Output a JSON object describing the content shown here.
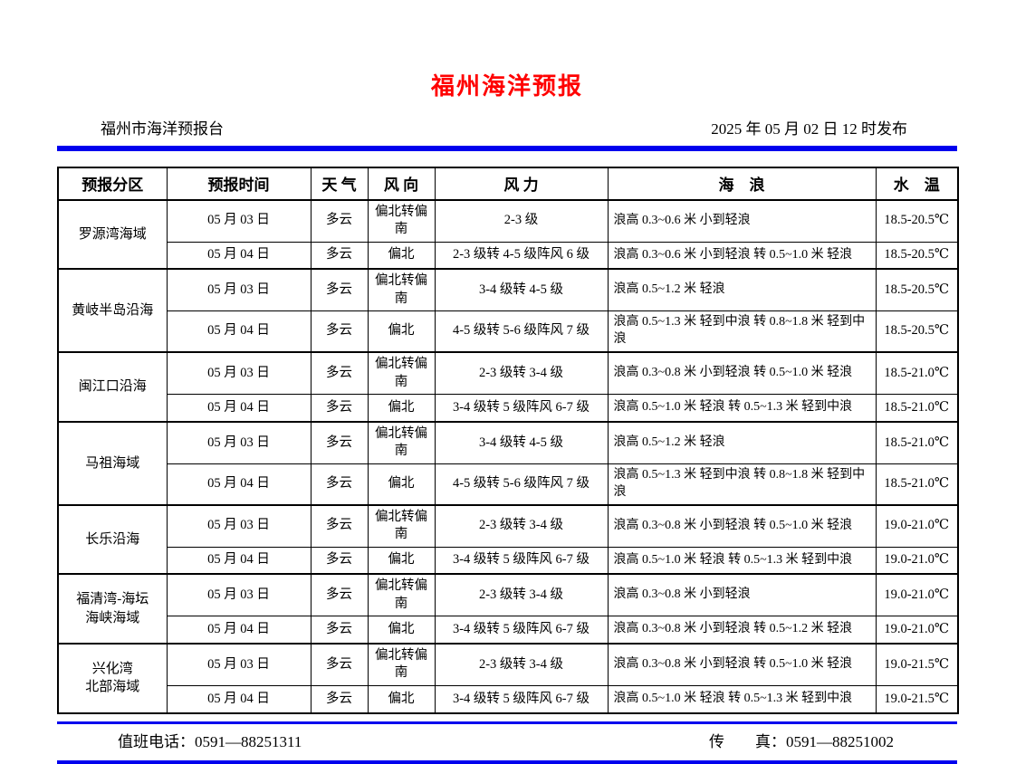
{
  "page": {
    "title": "福州海洋预报",
    "agency": "福州市海洋预报台",
    "issued": "2025 年 05 月 02 日 12 时发布",
    "phone": "值班电话：0591—88251311",
    "fax": "传　　真：0591—88251002",
    "title_color": "#ff0000",
    "divider_color": "#0000ee"
  },
  "table": {
    "headers": [
      "预报分区",
      "预报时间",
      "天 气",
      "风 向",
      "风  力",
      "海　浪",
      "水　温"
    ],
    "groups": [
      {
        "area": "罗源湾海域",
        "rows": [
          {
            "date": "05 月 03 日",
            "weather": "多云",
            "wind_dir": "偏北转偏南",
            "wind_force": "2-3 级",
            "waves": "浪高 0.3~0.6 米 小到轻浪",
            "water_temp": "18.5-20.5℃"
          },
          {
            "date": "05 月 04 日",
            "weather": "多云",
            "wind_dir": "偏北",
            "wind_force": "2-3 级转 4-5 级阵风 6 级",
            "waves": "浪高 0.3~0.6 米 小到轻浪 转 0.5~1.0 米 轻浪",
            "water_temp": "18.5-20.5℃"
          }
        ]
      },
      {
        "area": "黄岐半岛沿海",
        "rows": [
          {
            "date": "05 月 03 日",
            "weather": "多云",
            "wind_dir": "偏北转偏南",
            "wind_force": "3-4 级转 4-5 级",
            "waves": "浪高 0.5~1.2 米 轻浪",
            "water_temp": "18.5-20.5℃"
          },
          {
            "date": "05 月 04 日",
            "weather": "多云",
            "wind_dir": "偏北",
            "wind_force": "4-5 级转 5-6 级阵风 7 级",
            "waves": "浪高 0.5~1.3 米 轻到中浪 转 0.8~1.8 米 轻到中浪",
            "water_temp": "18.5-20.5℃"
          }
        ]
      },
      {
        "area": "闽江口沿海",
        "rows": [
          {
            "date": "05 月 03 日",
            "weather": "多云",
            "wind_dir": "偏北转偏南",
            "wind_force": "2-3 级转 3-4 级",
            "waves": "浪高 0.3~0.8 米 小到轻浪 转 0.5~1.0 米 轻浪",
            "water_temp": "18.5-21.0℃"
          },
          {
            "date": "05 月 04 日",
            "weather": "多云",
            "wind_dir": "偏北",
            "wind_force": "3-4 级转 5 级阵风 6-7 级",
            "waves": "浪高 0.5~1.0 米 轻浪 转 0.5~1.3 米 轻到中浪",
            "water_temp": "18.5-21.0℃"
          }
        ]
      },
      {
        "area": "马祖海域",
        "rows": [
          {
            "date": "05 月 03 日",
            "weather": "多云",
            "wind_dir": "偏北转偏南",
            "wind_force": "3-4 级转 4-5 级",
            "waves": "浪高 0.5~1.2 米 轻浪",
            "water_temp": "18.5-21.0℃"
          },
          {
            "date": "05 月 04 日",
            "weather": "多云",
            "wind_dir": "偏北",
            "wind_force": "4-5 级转 5-6 级阵风 7 级",
            "waves": "浪高 0.5~1.3 米 轻到中浪 转 0.8~1.8 米 轻到中浪",
            "water_temp": "18.5-21.0℃"
          }
        ]
      },
      {
        "area": "长乐沿海",
        "rows": [
          {
            "date": "05 月 03 日",
            "weather": "多云",
            "wind_dir": "偏北转偏南",
            "wind_force": "2-3 级转 3-4 级",
            "waves": "浪高 0.3~0.8 米 小到轻浪 转 0.5~1.0 米 轻浪",
            "water_temp": "19.0-21.0℃"
          },
          {
            "date": "05 月 04 日",
            "weather": "多云",
            "wind_dir": "偏北",
            "wind_force": "3-4 级转 5 级阵风 6-7 级",
            "waves": "浪高 0.5~1.0 米 轻浪 转 0.5~1.3 米 轻到中浪",
            "water_temp": "19.0-21.0℃"
          }
        ]
      },
      {
        "area": "福清湾-海坛\n海峡海域",
        "rows": [
          {
            "date": "05 月 03 日",
            "weather": "多云",
            "wind_dir": "偏北转偏南",
            "wind_force": "2-3 级转 3-4 级",
            "waves": "浪高 0.3~0.8 米 小到轻浪",
            "water_temp": "19.0-21.0℃"
          },
          {
            "date": "05 月 04 日",
            "weather": "多云",
            "wind_dir": "偏北",
            "wind_force": "3-4 级转 5 级阵风 6-7 级",
            "waves": "浪高 0.3~0.8 米 小到轻浪 转 0.5~1.2 米 轻浪",
            "water_temp": "19.0-21.0℃"
          }
        ]
      },
      {
        "area": "兴化湾\n北部海域",
        "rows": [
          {
            "date": "05 月 03 日",
            "weather": "多云",
            "wind_dir": "偏北转偏南",
            "wind_force": "2-3 级转 3-4 级",
            "waves": "浪高 0.3~0.8 米 小到轻浪 转 0.5~1.0 米 轻浪",
            "water_temp": "19.0-21.5℃"
          },
          {
            "date": "05 月 04 日",
            "weather": "多云",
            "wind_dir": "偏北",
            "wind_force": "3-4 级转 5 级阵风 6-7 级",
            "waves": "浪高 0.5~1.0 米 轻浪 转 0.5~1.3 米 轻到中浪",
            "water_temp": "19.0-21.5℃"
          }
        ]
      }
    ]
  }
}
